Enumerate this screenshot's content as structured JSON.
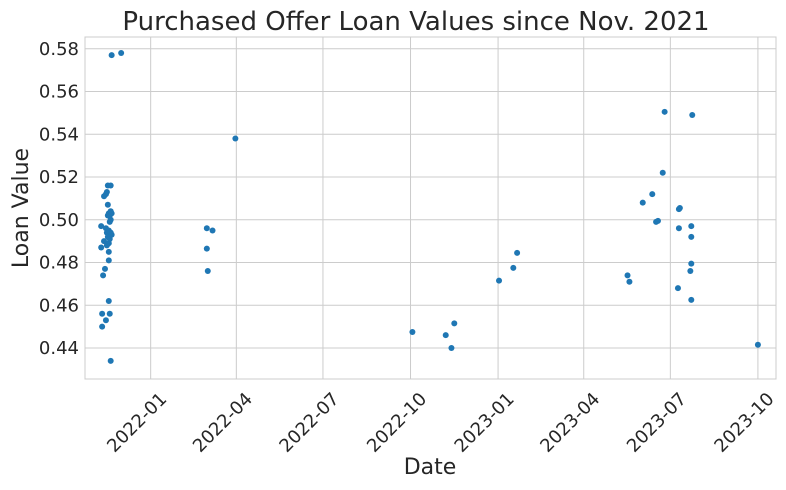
{
  "chart_data": {
    "type": "scatter",
    "title": "Purchased Offer Loan Values since Nov. 2021",
    "xlabel": "Date",
    "ylabel": "Loan Value",
    "x_ticks": [
      "2022-01",
      "2022-04",
      "2022-07",
      "2022-10",
      "2023-01",
      "2023-04",
      "2023-07",
      "2023-10"
    ],
    "y_ticks": [
      "0.44",
      "0.46",
      "0.48",
      "0.50",
      "0.52",
      "0.54",
      "0.56",
      "0.58"
    ],
    "xlim": [
      "2021-10-24",
      "2023-10-20"
    ],
    "ylim": [
      0.4255,
      0.5855
    ],
    "grid": true,
    "marker_color": "#1f77b4",
    "points": [
      [
        "2021-11-10",
        0.487
      ],
      [
        "2021-11-10",
        0.497
      ],
      [
        "2021-11-11",
        0.45
      ],
      [
        "2021-11-11",
        0.456
      ],
      [
        "2021-11-12",
        0.474
      ],
      [
        "2021-11-13",
        0.49
      ],
      [
        "2021-11-13",
        0.511
      ],
      [
        "2021-11-14",
        0.477
      ],
      [
        "2021-11-15",
        0.453
      ],
      [
        "2021-11-15",
        0.496
      ],
      [
        "2021-11-15",
        0.512
      ],
      [
        "2021-11-16",
        0.494
      ],
      [
        "2021-11-16",
        0.488
      ],
      [
        "2021-11-16",
        0.513
      ],
      [
        "2021-11-17",
        0.516
      ],
      [
        "2021-11-17",
        0.507
      ],
      [
        "2021-11-17",
        0.502
      ],
      [
        "2021-11-17",
        0.492
      ],
      [
        "2021-11-18",
        0.481
      ],
      [
        "2021-11-18",
        0.485
      ],
      [
        "2021-11-18",
        0.489
      ],
      [
        "2021-11-18",
        0.495
      ],
      [
        "2021-11-18",
        0.503
      ],
      [
        "2021-11-18",
        0.462
      ],
      [
        "2021-11-19",
        0.456
      ],
      [
        "2021-11-19",
        0.491
      ],
      [
        "2021-11-19",
        0.499
      ],
      [
        "2021-11-19",
        0.502
      ],
      [
        "2021-11-20",
        0.434
      ],
      [
        "2021-11-20",
        0.494
      ],
      [
        "2021-11-20",
        0.5
      ],
      [
        "2021-11-20",
        0.504
      ],
      [
        "2021-11-20",
        0.516
      ],
      [
        "2021-11-21",
        0.493
      ],
      [
        "2021-11-21",
        0.503
      ],
      [
        "2021-11-21",
        0.577
      ],
      [
        "2021-12-01",
        0.578
      ],
      [
        "2022-03-01",
        0.496
      ],
      [
        "2022-03-01",
        0.4865
      ],
      [
        "2022-03-02",
        0.476
      ],
      [
        "2022-03-07",
        0.495
      ],
      [
        "2022-03-31",
        0.538
      ],
      [
        "2022-10-03",
        0.4475
      ],
      [
        "2022-11-07",
        0.446
      ],
      [
        "2022-11-13",
        0.44
      ],
      [
        "2022-11-16",
        0.4515
      ],
      [
        "2023-01-02",
        0.4715
      ],
      [
        "2023-01-17",
        0.4775
      ],
      [
        "2023-01-21",
        0.4845
      ],
      [
        "2023-05-17",
        0.474
      ],
      [
        "2023-05-19",
        0.471
      ],
      [
        "2023-06-02",
        0.508
      ],
      [
        "2023-06-12",
        0.512
      ],
      [
        "2023-06-16",
        0.499
      ],
      [
        "2023-06-18",
        0.4995
      ],
      [
        "2023-06-23",
        0.522
      ],
      [
        "2023-06-25",
        0.5505
      ],
      [
        "2023-07-09",
        0.468
      ],
      [
        "2023-07-10",
        0.496
      ],
      [
        "2023-07-10",
        0.505
      ],
      [
        "2023-07-11",
        0.5055
      ],
      [
        "2023-07-22",
        0.476
      ],
      [
        "2023-07-23",
        0.4625
      ],
      [
        "2023-07-23",
        0.492
      ],
      [
        "2023-07-23",
        0.4795
      ],
      [
        "2023-07-23",
        0.497
      ],
      [
        "2023-07-24",
        0.549
      ],
      [
        "2023-10-01",
        0.4415
      ]
    ]
  }
}
